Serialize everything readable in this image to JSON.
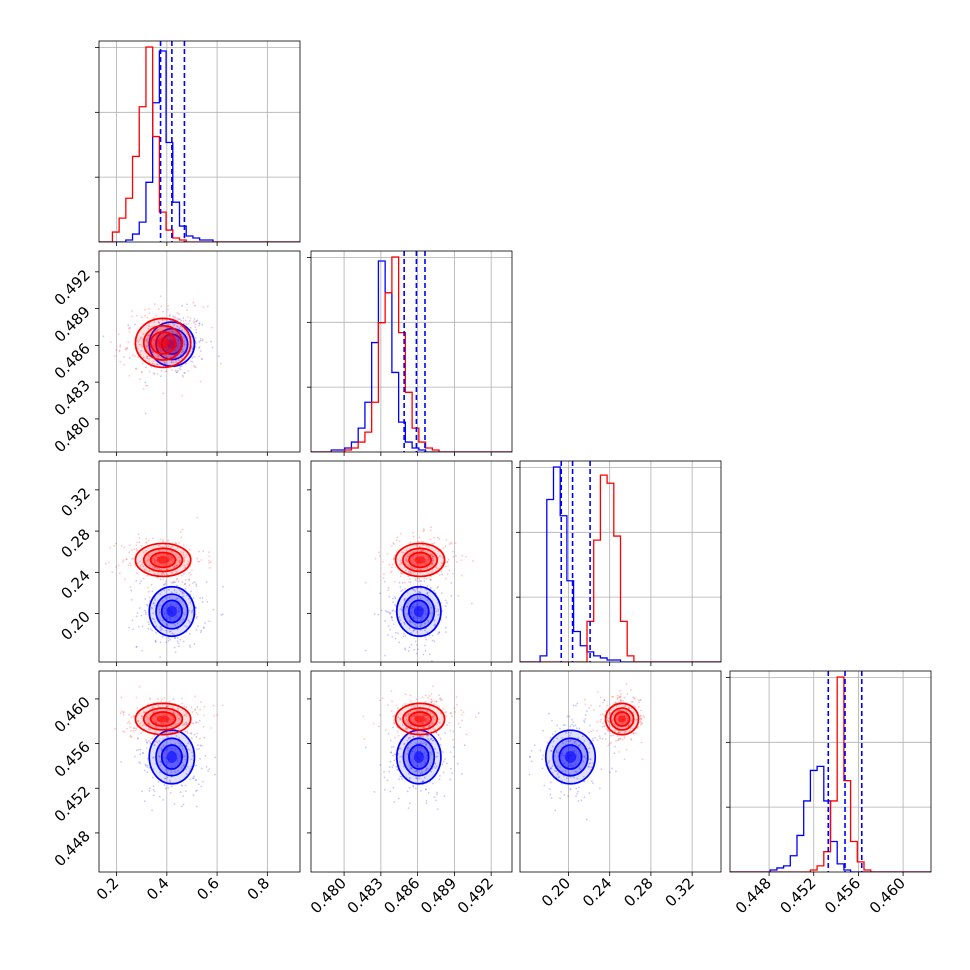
{
  "chart_data": {
    "type": "corner",
    "title": "",
    "grid": true,
    "colors": {
      "series_a": "#0000ff",
      "series_b": "#ff0000"
    },
    "parameters": [
      {
        "range": [
          0.13,
          0.93
        ],
        "ticks": [
          0.2,
          0.4,
          0.6,
          0.8
        ],
        "tick_labels": [
          "0.2",
          "0.4",
          "0.6",
          "0.8"
        ]
      },
      {
        "range": [
          0.4773,
          0.4937
        ],
        "ticks": [
          0.48,
          0.483,
          0.486,
          0.489,
          0.492
        ],
        "tick_labels": [
          "0.480",
          "0.483",
          "0.486",
          "0.489",
          "0.492"
        ]
      },
      {
        "range": [
          0.153,
          0.348
        ],
        "ticks": [
          0.2,
          0.24,
          0.28,
          0.32
        ],
        "tick_labels": [
          "0.20",
          "0.24",
          "0.28",
          "0.32"
        ]
      },
      {
        "range": [
          0.4445,
          0.4625
        ],
        "ticks": [
          0.448,
          0.452,
          0.456,
          0.46
        ],
        "tick_labels": [
          "0.448",
          "0.452",
          "0.456",
          "0.460"
        ]
      }
    ],
    "series": [
      {
        "color": "#0000ff",
        "means": [
          0.42,
          0.4861,
          0.202,
          0.4548
        ],
        "sds": [
          0.045,
          0.0009,
          0.012,
          0.0012
        ],
        "quantiles": [
          [
            0.375,
            0.42,
            0.47
          ],
          [
            0.4849,
            0.4859,
            0.4866
          ],
          [
            0.193,
            0.204,
            0.221
          ],
          [
            0.4533,
            0.4548,
            0.4563
          ]
        ],
        "histograms": [
          {
            "start": 0.13,
            "step": 0.0267,
            "counts": [
              0,
              0,
              0,
              0,
              1,
              4,
              10,
              30,
              70,
              96,
              50,
              20,
              8,
              3,
              2,
              1,
              1,
              0,
              0,
              0,
              0,
              0,
              0,
              0,
              0,
              0,
              0,
              0,
              0,
              0
            ]
          },
          {
            "start": 0.4773,
            "step": 0.00055,
            "counts": [
              0,
              0,
              0,
              1,
              1,
              2,
              5,
              12,
              25,
              55,
              96,
              80,
              40,
              15,
              5,
              2,
              1,
              0,
              0,
              0,
              0,
              0,
              0,
              0,
              0,
              0,
              0,
              0,
              0,
              0
            ]
          },
          {
            "start": 0.153,
            "step": 0.0065,
            "counts": [
              0,
              0,
              0,
              3,
              80,
              96,
              72,
              40,
              15,
              8,
              5,
              3,
              2,
              1,
              1,
              0,
              0,
              0,
              0,
              0,
              0,
              0,
              0,
              0,
              0,
              0,
              0,
              0,
              0,
              0
            ]
          },
          {
            "start": 0.4445,
            "step": 0.0006,
            "counts": [
              0,
              0,
              0,
              0,
              0,
              0,
              1,
              2,
              3,
              8,
              18,
              35,
              50,
              52,
              35,
              15,
              4,
              1,
              0,
              0,
              0,
              0,
              0,
              0,
              0,
              0,
              0,
              0,
              0,
              0
            ]
          }
        ]
      },
      {
        "color": "#ff0000",
        "means": [
          0.385,
          0.4862,
          0.252,
          0.4582
        ],
        "sds": [
          0.055,
          0.001,
          0.008,
          0.0007
        ],
        "quantiles": [],
        "histograms": [
          {
            "start": 0.13,
            "step": 0.0267,
            "counts": [
              0,
              0,
              5,
              12,
              22,
              43,
              68,
              98,
              53,
              15,
              6,
              2,
              1,
              0,
              0,
              0,
              0,
              0,
              0,
              0,
              0,
              0,
              0,
              0,
              0,
              0,
              0,
              0,
              0,
              0
            ]
          },
          {
            "start": 0.4773,
            "step": 0.00055,
            "counts": [
              0,
              0,
              0,
              0,
              0,
              1,
              2,
              5,
              10,
              25,
              65,
              80,
              98,
              60,
              30,
              12,
              5,
              2,
              1,
              0,
              0,
              0,
              0,
              0,
              0,
              0,
              0,
              0,
              0,
              0
            ]
          },
          {
            "start": 0.153,
            "step": 0.0065,
            "counts": [
              0,
              0,
              0,
              0,
              0,
              0,
              0,
              0,
              0,
              0,
              20,
              60,
              92,
              88,
              62,
              20,
              3,
              0,
              0,
              0,
              0,
              0,
              0,
              0,
              0,
              0,
              0,
              0,
              0,
              0
            ]
          },
          {
            "start": 0.4445,
            "step": 0.0006,
            "counts": [
              0,
              0,
              0,
              0,
              0,
              0,
              0,
              0,
              0,
              0,
              0,
              0,
              1,
              3,
              10,
              35,
              96,
              45,
              15,
              5,
              1,
              0,
              0,
              0,
              0,
              0,
              0,
              0,
              0,
              0
            ]
          }
        ]
      }
    ]
  }
}
